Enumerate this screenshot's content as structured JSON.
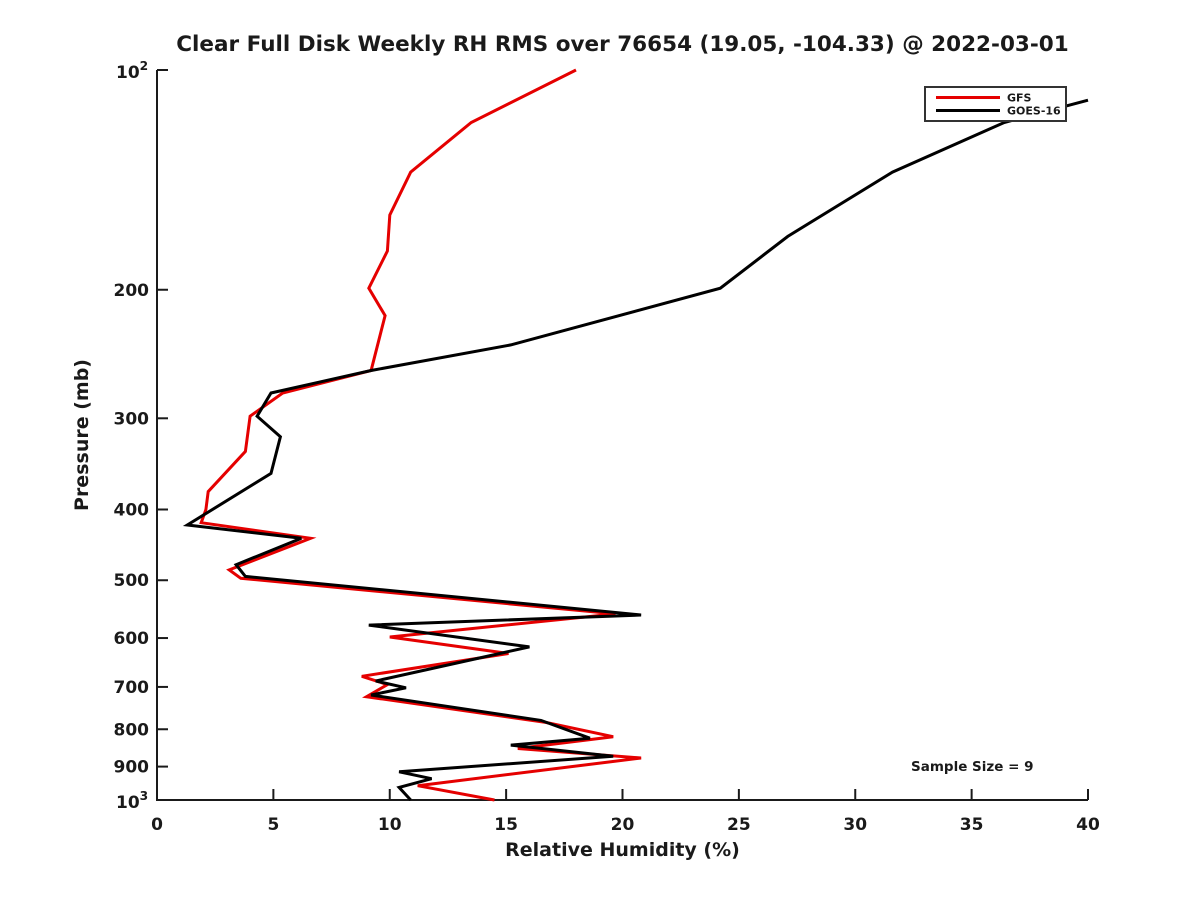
{
  "title": "Clear Full Disk Weekly RH RMS over 76654 (19.05, -104.33) @ 2022-03-01",
  "annotation_text": "Sample Size = 9",
  "axis": {
    "xlabel": "Relative Humidity (%)",
    "ylabel": "Pressure (mb)"
  },
  "colors": {
    "gfs": "#e50000",
    "goes16": "#000000",
    "text": "#1a1a1a",
    "spine": "#1a1a1a",
    "legend_border": "#333333"
  },
  "legend": {
    "items": [
      {
        "label": "GFS",
        "color": "#e50000"
      },
      {
        "label": "GOES-16",
        "color": "#000000"
      }
    ],
    "position": "upper right"
  },
  "chart_data": {
    "type": "line",
    "title": "Clear Full Disk Weekly RH RMS over 76654 (19.05, -104.33) @ 2022-03-01",
    "xlabel": "Relative Humidity (%)",
    "ylabel": "Pressure (mb)",
    "xlim": [
      0,
      40
    ],
    "xticks": [
      0,
      5,
      10,
      15,
      20,
      25,
      30,
      35,
      40
    ],
    "yscale": "log",
    "y_inverted": true,
    "ylim": [
      100,
      1000
    ],
    "yticks": [
      100,
      200,
      300,
      400,
      500,
      600,
      700,
      800,
      900,
      1000
    ],
    "ytick_labels": [
      "10^2",
      "200",
      "300",
      "400",
      "500",
      "600",
      "700",
      "800",
      "900",
      "10^3"
    ],
    "grid": false,
    "legend_position": "upper right",
    "annotation": {
      "text": "Sample Size = 9"
    },
    "series": [
      {
        "name": "GFS",
        "color": "#e50000",
        "points_pressure_mb_vs_rh_pct": [
          [
            100,
            18.0
          ],
          [
            118,
            13.5
          ],
          [
            138,
            10.9
          ],
          [
            158,
            10.0
          ],
          [
            177,
            9.9
          ],
          [
            199,
            9.1
          ],
          [
            217,
            9.8
          ],
          [
            258,
            9.2
          ],
          [
            277,
            5.4
          ],
          [
            298,
            4.0
          ],
          [
            333,
            3.8
          ],
          [
            378,
            2.2
          ],
          [
            400,
            2.1
          ],
          [
            417,
            1.9
          ],
          [
            438,
            6.6
          ],
          [
            484,
            3.1
          ],
          [
            497,
            3.6
          ],
          [
            556,
            19.7
          ],
          [
            598,
            10.0
          ],
          [
            630,
            15.1
          ],
          [
            677,
            8.8
          ],
          [
            695,
            9.9
          ],
          [
            722,
            9.0
          ],
          [
            783,
            16.7
          ],
          [
            819,
            19.6
          ],
          [
            850,
            15.5
          ],
          [
            876,
            20.8
          ],
          [
            956,
            11.2
          ],
          [
            1000,
            14.5
          ]
        ]
      },
      {
        "name": "GOES-16",
        "color": "#000000",
        "points_pressure_mb_vs_rh_pct": [
          [
            110,
            40.0
          ],
          [
            118,
            36.4
          ],
          [
            138,
            31.6
          ],
          [
            169,
            27.1
          ],
          [
            199,
            24.2
          ],
          [
            238,
            15.2
          ],
          [
            258,
            9.2
          ],
          [
            277,
            4.9
          ],
          [
            298,
            4.3
          ],
          [
            318,
            5.3
          ],
          [
            357,
            4.9
          ],
          [
            420,
            1.3
          ],
          [
            438,
            6.2
          ],
          [
            476,
            3.4
          ],
          [
            494,
            3.8
          ],
          [
            558,
            20.8
          ],
          [
            576,
            9.1
          ],
          [
            617,
            16.0
          ],
          [
            687,
            9.4
          ],
          [
            702,
            10.7
          ],
          [
            718,
            9.2
          ],
          [
            778,
            16.5
          ],
          [
            823,
            18.6
          ],
          [
            841,
            15.2
          ],
          [
            871,
            19.6
          ],
          [
            915,
            10.4
          ],
          [
            935,
            11.8
          ],
          [
            961,
            10.4
          ],
          [
            1000,
            10.9
          ]
        ]
      }
    ]
  }
}
